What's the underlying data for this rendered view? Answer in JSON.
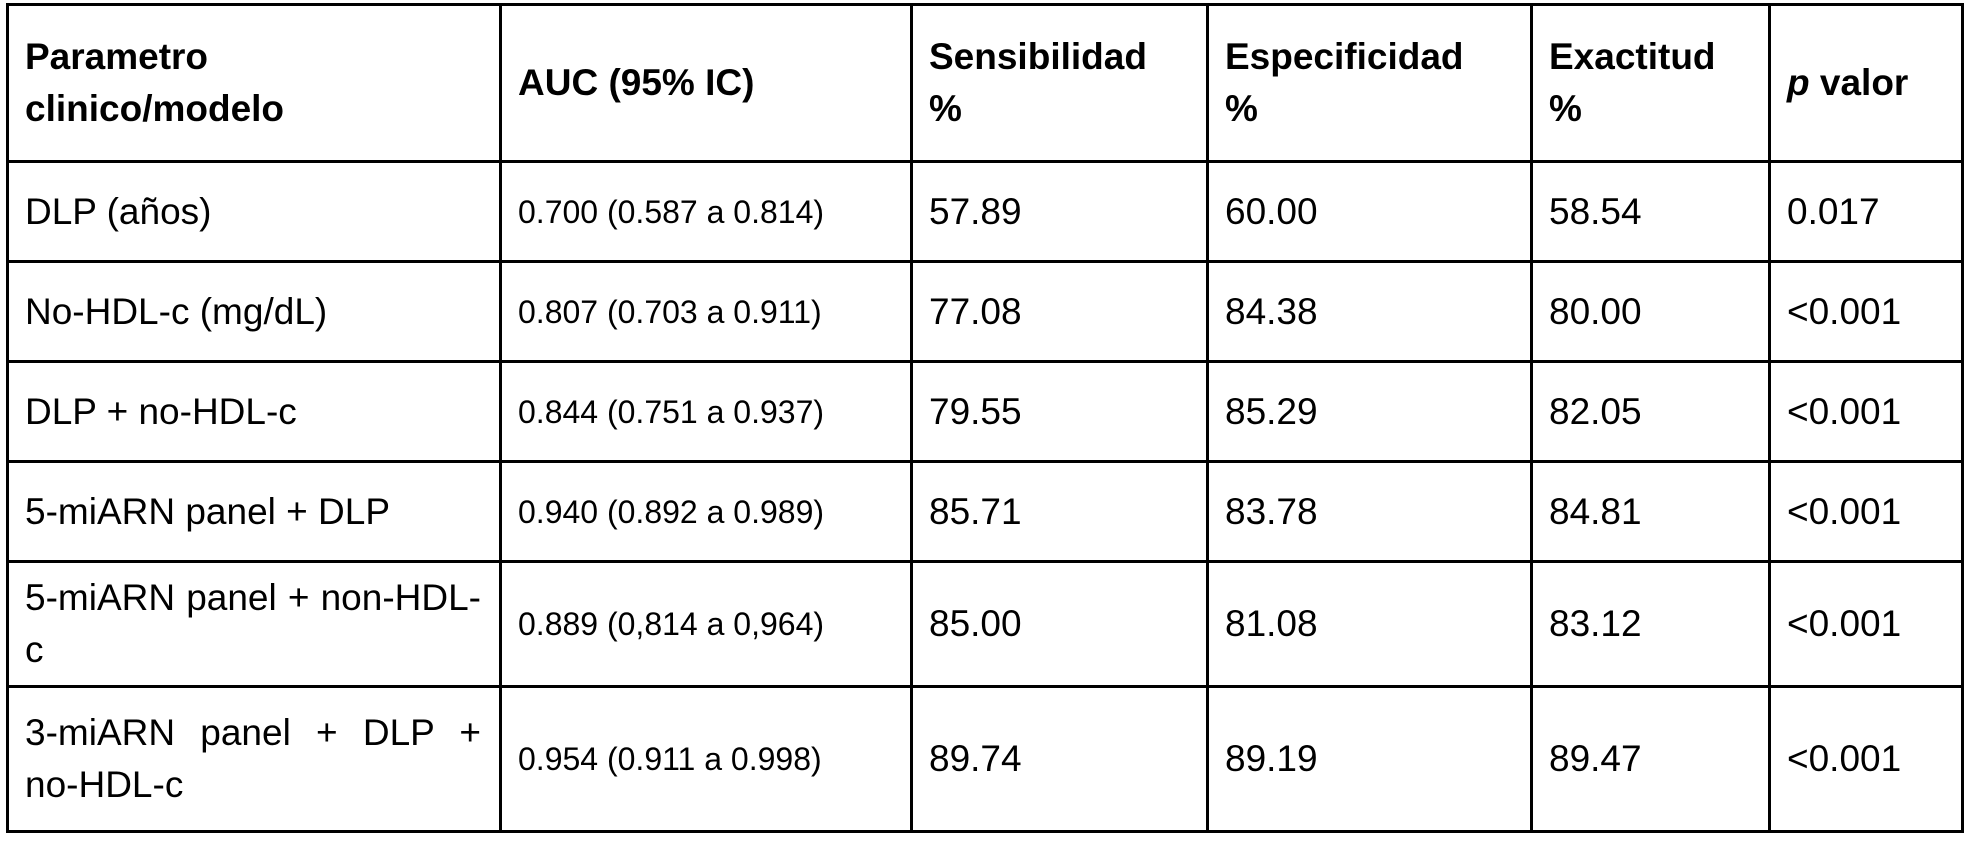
{
  "table": {
    "headers": {
      "param_line1": "Parametro",
      "param_line2": "clinico/modelo",
      "auc": "AUC (95% IC)",
      "sens_line1": "Sensibilidad",
      "sens_line2": "%",
      "spec_line1": "Especificidad",
      "spec_line2": "%",
      "acc_line1": "Exactitud",
      "acc_line2": "%",
      "p_italic": "p",
      "p_rest": " valor"
    },
    "rows": [
      {
        "param": "DLP (años)",
        "auc": "0.700 (0.587 a 0.814)",
        "sens": "57.89",
        "spec": "60.00",
        "acc": "58.54",
        "p": "0.017"
      },
      {
        "param": "No-HDL-c (mg/dL)",
        "auc": "0.807 (0.703 a 0.911)",
        "sens": "77.08",
        "spec": "84.38",
        "acc": "80.00",
        "p": "<0.001"
      },
      {
        "param": "DLP + no-HDL-c",
        "auc": "0.844 (0.751 a 0.937)",
        "sens": "79.55",
        "spec": "85.29",
        "acc": "82.05",
        "p": "<0.001"
      },
      {
        "param": "5-miARN panel + DLP",
        "auc": "0.940 (0.892 a 0.989)",
        "sens": "85.71",
        "spec": "83.78",
        "acc": "84.81",
        "p": "<0.001"
      },
      {
        "param": "5-miARN panel + non-HDL-c",
        "auc": "0.889 (0,814 a 0,964)",
        "sens": "85.00",
        "spec": "81.08",
        "acc": "83.12",
        "p": "<0.001"
      },
      {
        "param": "3-miARN panel + DLP + no-HDL-c",
        "auc": "0.954 (0.911 a 0.998)",
        "sens": "89.74",
        "spec": "89.19",
        "acc": "89.47",
        "p": "<0.001"
      }
    ]
  }
}
